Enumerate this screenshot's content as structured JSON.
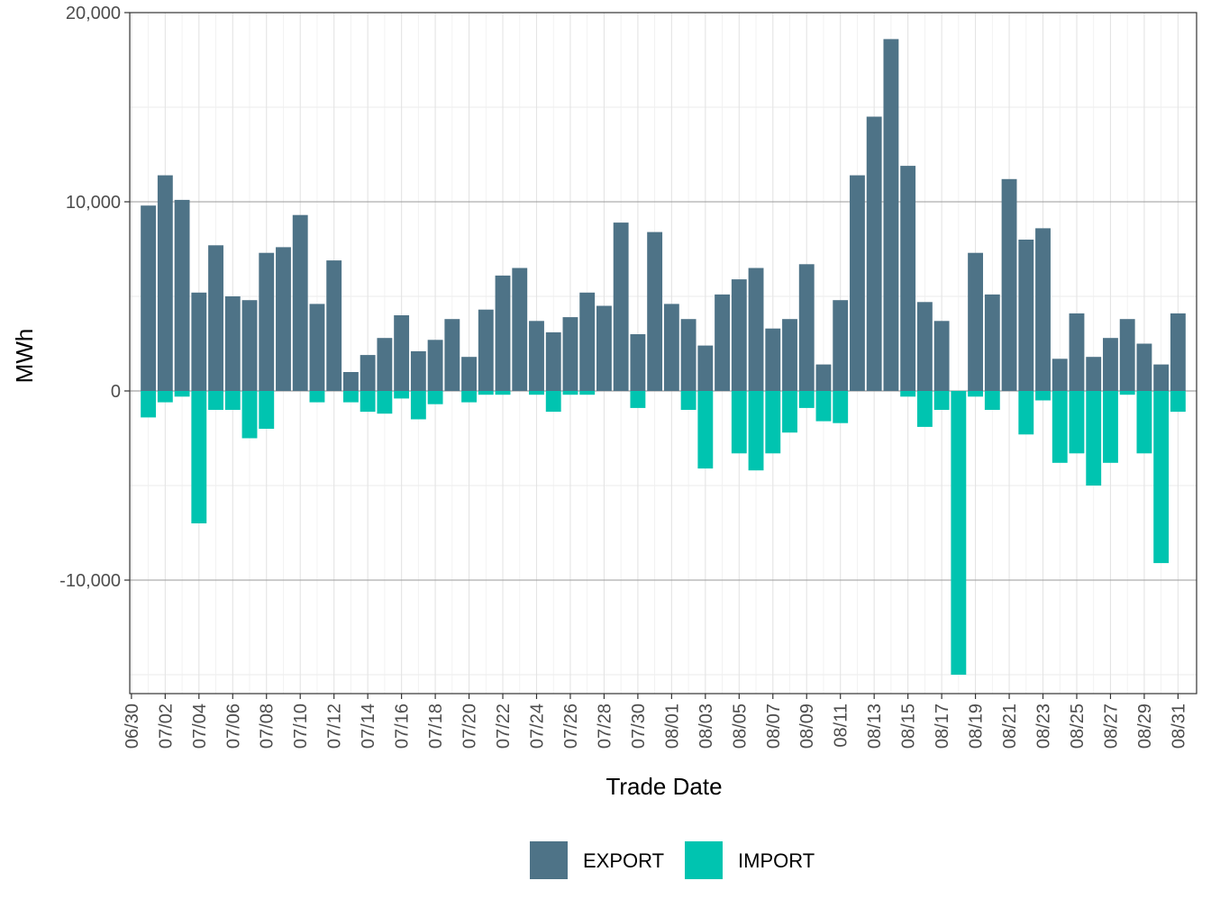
{
  "chart_data": {
    "type": "bar",
    "stacked": true,
    "xlabel": "Trade Date",
    "ylabel": "MWh",
    "ylim": [
      -16000,
      20000
    ],
    "yticks": [
      -10000,
      0,
      10000,
      20000
    ],
    "ytick_labels": [
      "-10,000",
      "0",
      "10,000",
      "20,000"
    ],
    "grid": true,
    "legend_position": "bottom",
    "x": [
      "07/01",
      "07/02",
      "07/03",
      "07/04",
      "07/05",
      "07/06",
      "07/07",
      "07/08",
      "07/09",
      "07/10",
      "07/11",
      "07/12",
      "07/13",
      "07/14",
      "07/15",
      "07/16",
      "07/17",
      "07/18",
      "07/19",
      "07/20",
      "07/21",
      "07/22",
      "07/23",
      "07/24",
      "07/25",
      "07/26",
      "07/27",
      "07/28",
      "07/29",
      "07/30",
      "07/31",
      "08/01",
      "08/02",
      "08/03",
      "08/04",
      "08/05",
      "08/06",
      "08/07",
      "08/08",
      "08/09",
      "08/10",
      "08/11",
      "08/12",
      "08/13",
      "08/14",
      "08/15",
      "08/16",
      "08/17",
      "08/18",
      "08/19",
      "08/20",
      "08/21",
      "08/22",
      "08/23",
      "08/24",
      "08/25",
      "08/26",
      "08/27",
      "08/28",
      "08/29",
      "08/30",
      "08/31"
    ],
    "xtick_labels": [
      "06/30",
      "07/02",
      "07/04",
      "07/06",
      "07/08",
      "07/10",
      "07/12",
      "07/14",
      "07/16",
      "07/18",
      "07/20",
      "07/22",
      "07/24",
      "07/26",
      "07/28",
      "07/30",
      "08/01",
      "08/03",
      "08/05",
      "08/07",
      "08/09",
      "08/11",
      "08/13",
      "08/15",
      "08/17",
      "08/19",
      "08/21",
      "08/23",
      "08/25",
      "08/27",
      "08/29",
      "08/31"
    ],
    "series": [
      {
        "name": "EXPORT",
        "color": "#4e7387",
        "values": [
          9800,
          11400,
          10100,
          5200,
          7700,
          5000,
          4800,
          7300,
          7600,
          9300,
          4600,
          6900,
          1000,
          1900,
          2800,
          4000,
          2100,
          2700,
          3800,
          1800,
          4300,
          6100,
          6500,
          3700,
          3100,
          3900,
          5200,
          4500,
          8900,
          3000,
          8400,
          4600,
          3800,
          2400,
          5100,
          5900,
          6500,
          3300,
          3800,
          6700,
          1400,
          4800,
          11400,
          14500,
          18600,
          11900,
          4700,
          3700,
          0,
          7300,
          5100,
          11200,
          8000,
          8600,
          1700,
          4100,
          1800,
          2800,
          3800,
          2500,
          1400,
          4100
        ]
      },
      {
        "name": "IMPORT",
        "color": "#00c4b0",
        "values": [
          -1400,
          -600,
          -300,
          -7000,
          -1000,
          -1000,
          -2500,
          -2000,
          0,
          0,
          -600,
          0,
          -600,
          -1100,
          -1200,
          -400,
          -1500,
          -700,
          0,
          -600,
          -200,
          -200,
          0,
          -200,
          -1100,
          -200,
          -200,
          0,
          0,
          -900,
          0,
          0,
          -1000,
          -4100,
          0,
          -3300,
          -4200,
          -3300,
          -2200,
          -900,
          -1600,
          -1700,
          0,
          0,
          0,
          -300,
          -1900,
          -1000,
          -15000,
          -300,
          -1000,
          0,
          -2300,
          -500,
          -3800,
          -3300,
          -5000,
          -3800,
          -200,
          -3300,
          -9100,
          -1100
        ]
      }
    ]
  }
}
